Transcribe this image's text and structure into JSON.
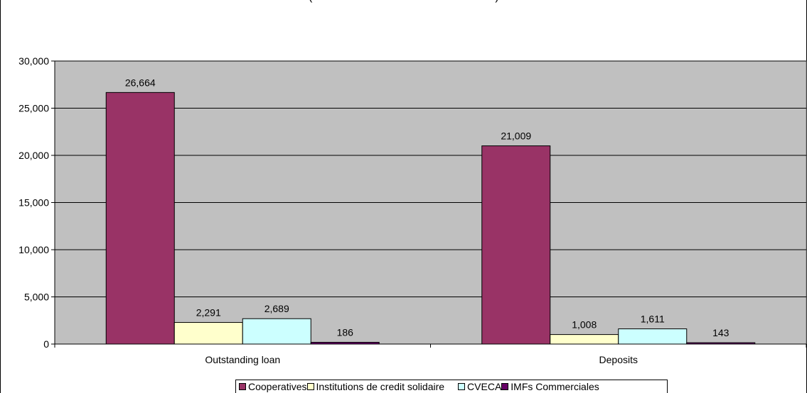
{
  "chart_data": {
    "type": "bar",
    "title": "(",
    "title_closing": ")",
    "categories": [
      "Outstanding loan",
      "Deposits"
    ],
    "series": [
      {
        "name": "Cooperatives",
        "color": "#993366",
        "values": [
          26664,
          21009
        ],
        "labels": [
          "26,664",
          "21,009"
        ]
      },
      {
        "name": "Institutions de credit solidaire",
        "color": "#FFFFCC",
        "values": [
          2291,
          1008
        ],
        "labels": [
          "2,291",
          "1,008"
        ]
      },
      {
        "name": "CVECA",
        "color": "#CCFFFF",
        "values": [
          2689,
          1611
        ],
        "labels": [
          "2,689",
          "1,611"
        ]
      },
      {
        "name": "IMFs Commerciales",
        "color": "#660066",
        "values": [
          186,
          143
        ],
        "labels": [
          "186",
          "143"
        ]
      }
    ],
    "ylim": [
      0,
      30000
    ],
    "yticks": [
      0,
      5000,
      10000,
      15000,
      20000,
      25000,
      30000
    ],
    "ytick_labels": [
      "0",
      "5,000",
      "10,000",
      "15,000",
      "20,000",
      "25,000",
      "30,000"
    ],
    "grid": true,
    "plot_background": "#C0C0C0",
    "legend_position": "bottom"
  }
}
